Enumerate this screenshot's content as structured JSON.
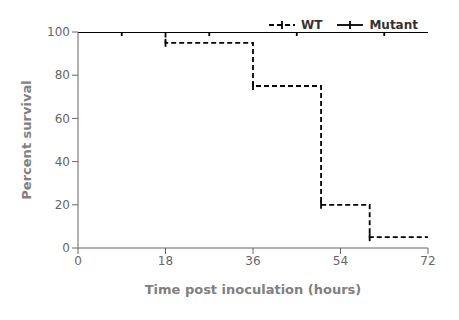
{
  "chart_data": {
    "type": "step",
    "xlabel": "Time post inoculation (hours)",
    "ylabel": "Percent survival",
    "xlim": [
      0,
      72
    ],
    "ylim": [
      0,
      100
    ],
    "xticks": [
      0,
      18,
      36,
      54,
      72
    ],
    "yticks": [
      0,
      20,
      40,
      60,
      80,
      100
    ],
    "grid": false,
    "legend": "upper right",
    "series": [
      {
        "name": "WT",
        "color": "#000000",
        "line_style": "dashed",
        "marker": "vline",
        "x": [
          0,
          18,
          36,
          36,
          50,
          50,
          60,
          60,
          72
        ],
        "values": [
          100,
          95,
          95,
          75,
          75,
          20,
          20,
          5,
          5
        ],
        "censor_x": [
          18,
          36,
          50,
          60
        ],
        "censor_y": [
          95,
          75,
          20,
          5
        ]
      },
      {
        "name": "Mutant",
        "color": "#000000",
        "line_style": "solid",
        "marker": "vline",
        "x": [
          0,
          72
        ],
        "values": [
          100,
          100
        ],
        "censor_x": [
          9,
          27,
          45,
          63
        ],
        "censor_y": [
          100,
          100,
          100,
          100
        ]
      }
    ]
  }
}
